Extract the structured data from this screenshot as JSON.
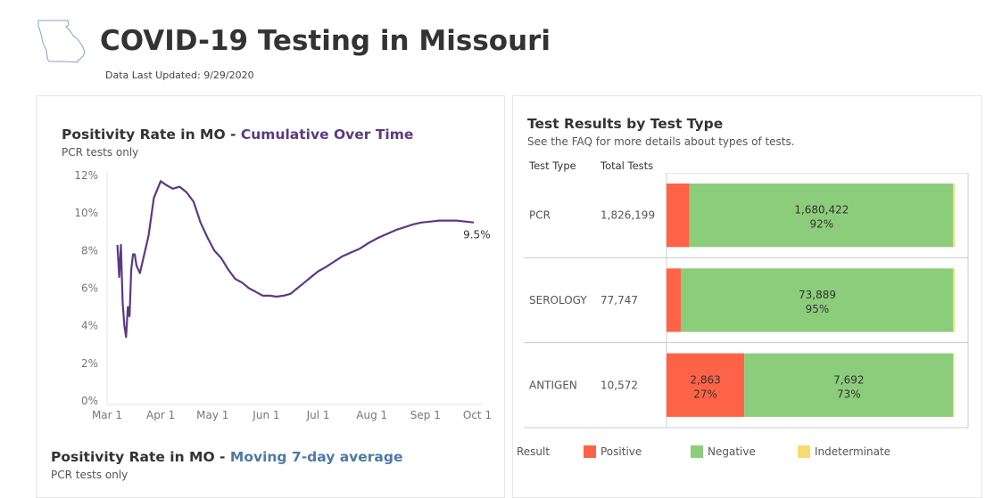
{
  "header": {
    "title": "COVID-19 Testing in Missouri",
    "updated": "Data Last Updated: 9/29/2020"
  },
  "left": {
    "chart1": {
      "title_prefix": "Positivity Rate in MO - ",
      "title_highlight": "Cumulative Over Time",
      "subtitle": "PCR tests only"
    },
    "chart2": {
      "title_prefix": "Positivity Rate in MO - ",
      "title_highlight": "Moving 7-day average",
      "subtitle": "PCR tests only"
    }
  },
  "right": {
    "title": "Test Results by Test Type",
    "subtitle": "See the FAQ for more details about types of tests.",
    "col_type": "Test Type",
    "col_total": "Total Tests",
    "legend_title": "Result"
  },
  "colors": {
    "line": "#5b3a83",
    "highlight_purple": "#5b3a83",
    "highlight_blue": "#4e79a7",
    "positive": "#ff6347",
    "negative": "#8ccd7b",
    "indeterminate": "#f7dc6f"
  },
  "chart_data": [
    {
      "type": "line",
      "title": "Positivity Rate in MO - Cumulative Over Time",
      "subtitle": "PCR tests only",
      "x_ticks": [
        "Mar 1",
        "Apr 1",
        "May 1",
        "Jun 1",
        "Jul 1",
        "Aug 1",
        "Sep 1",
        "Oct 1"
      ],
      "y_ticks": [
        "12%",
        "10%",
        "8%",
        "6%",
        "4%",
        "2%",
        "0%"
      ],
      "ylim": [
        0,
        12
      ],
      "end_label": "9.5%",
      "series": [
        {
          "x": [
            "2020-03-07",
            "2020-03-08",
            "2020-03-09",
            "2020-03-10",
            "2020-03-11",
            "2020-03-12",
            "2020-03-13",
            "2020-03-14",
            "2020-03-15",
            "2020-03-16",
            "2020-03-17",
            "2020-03-18",
            "2020-03-19",
            "2020-03-20",
            "2020-03-22",
            "2020-03-25",
            "2020-03-28",
            "2020-04-01",
            "2020-04-04",
            "2020-04-08",
            "2020-04-12",
            "2020-04-16",
            "2020-04-20",
            "2020-04-24",
            "2020-04-28",
            "2020-05-02",
            "2020-05-06",
            "2020-05-10",
            "2020-05-14",
            "2020-05-18",
            "2020-05-22",
            "2020-05-26",
            "2020-05-30",
            "2020-06-03",
            "2020-06-07",
            "2020-06-11",
            "2020-06-15",
            "2020-06-19",
            "2020-06-23",
            "2020-06-27",
            "2020-07-01",
            "2020-07-05",
            "2020-07-10",
            "2020-07-15",
            "2020-07-20",
            "2020-07-25",
            "2020-07-30",
            "2020-08-05",
            "2020-08-10",
            "2020-08-15",
            "2020-08-20",
            "2020-08-25",
            "2020-08-30",
            "2020-09-04",
            "2020-09-09",
            "2020-09-14",
            "2020-09-19",
            "2020-09-24",
            "2020-09-29"
          ],
          "y": [
            8.3,
            6.6,
            8.3,
            5.2,
            4.0,
            3.4,
            5.0,
            4.5,
            7.0,
            7.8,
            7.8,
            7.2,
            7.0,
            6.8,
            7.6,
            8.8,
            10.8,
            11.7,
            11.5,
            11.3,
            11.4,
            11.1,
            10.6,
            9.5,
            8.7,
            8.0,
            7.6,
            7.0,
            6.5,
            6.3,
            6.0,
            5.8,
            5.6,
            5.6,
            5.55,
            5.6,
            5.7,
            6.0,
            6.3,
            6.6,
            6.9,
            7.1,
            7.4,
            7.7,
            7.9,
            8.1,
            8.4,
            8.7,
            8.9,
            9.1,
            9.25,
            9.4,
            9.5,
            9.55,
            9.6,
            9.6,
            9.6,
            9.55,
            9.5
          ]
        }
      ]
    },
    {
      "type": "bar",
      "title": "Test Results by Test Type",
      "subtitle": "See the FAQ for more details about types of tests.",
      "stacked": true,
      "orientation": "horizontal",
      "categories": [
        "PCR",
        "SEROLOGY",
        "ANTIGEN"
      ],
      "totals": [
        "1,826,199",
        "77,747",
        "10,572"
      ],
      "series": [
        {
          "name": "Positive",
          "values": [
            145777,
            3858,
            2863
          ],
          "labels": [
            "",
            "",
            "2,863"
          ],
          "pct_labels": [
            "",
            "",
            "27%"
          ]
        },
        {
          "name": "Negative",
          "values": [
            1680422,
            73889,
            7692
          ],
          "labels": [
            "1,680,422",
            "73,889",
            "7,692"
          ],
          "pct_labels": [
            "92%",
            "95%",
            "73%"
          ]
        },
        {
          "name": "Indeterminate",
          "values": [
            0,
            0,
            17
          ],
          "labels": [
            "",
            "",
            ""
          ],
          "pct_labels": [
            "",
            "",
            ""
          ]
        }
      ]
    },
    {
      "type": "line",
      "title": "Positivity Rate in MO - Moving 7-day average",
      "subtitle": "PCR tests only"
    }
  ]
}
